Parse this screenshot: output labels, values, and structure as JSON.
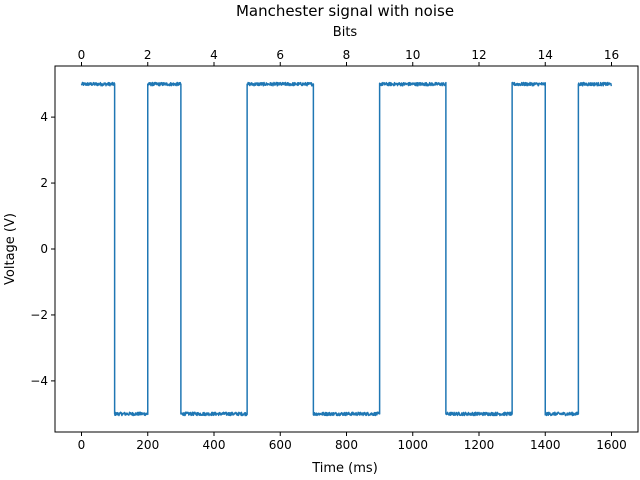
{
  "chart_data": {
    "type": "line",
    "title": "Manchester signal with noise",
    "xlabel": "Time (ms)",
    "ylabel": "Voltage (V)",
    "x2label": "Bits",
    "xlim": [
      -80,
      1680
    ],
    "ylim": [
      -5.55,
      5.55
    ],
    "x2lim": [
      -0.8,
      16.8
    ],
    "xticks": [
      0,
      200,
      400,
      600,
      800,
      1000,
      1200,
      1400,
      1600
    ],
    "yticks": [
      -4,
      -2,
      0,
      2,
      4
    ],
    "x2ticks": [
      0,
      2,
      4,
      6,
      8,
      10,
      12,
      14,
      16
    ],
    "grid": false,
    "line_color": "#1f77b4",
    "noise_amplitude": 0.05,
    "series": [
      {
        "x": [
          0,
          100,
          100,
          200,
          200,
          300,
          300,
          500,
          500,
          700,
          700,
          900,
          900,
          1100,
          1100,
          1300,
          1300,
          1400,
          1400,
          1500,
          1500,
          1600
        ],
        "y": [
          5,
          5,
          -5,
          -5,
          5,
          5,
          -5,
          -5,
          5,
          5,
          -5,
          -5,
          5,
          5,
          -5,
          -5,
          5,
          5,
          -5,
          -5,
          5,
          5
        ]
      }
    ]
  }
}
